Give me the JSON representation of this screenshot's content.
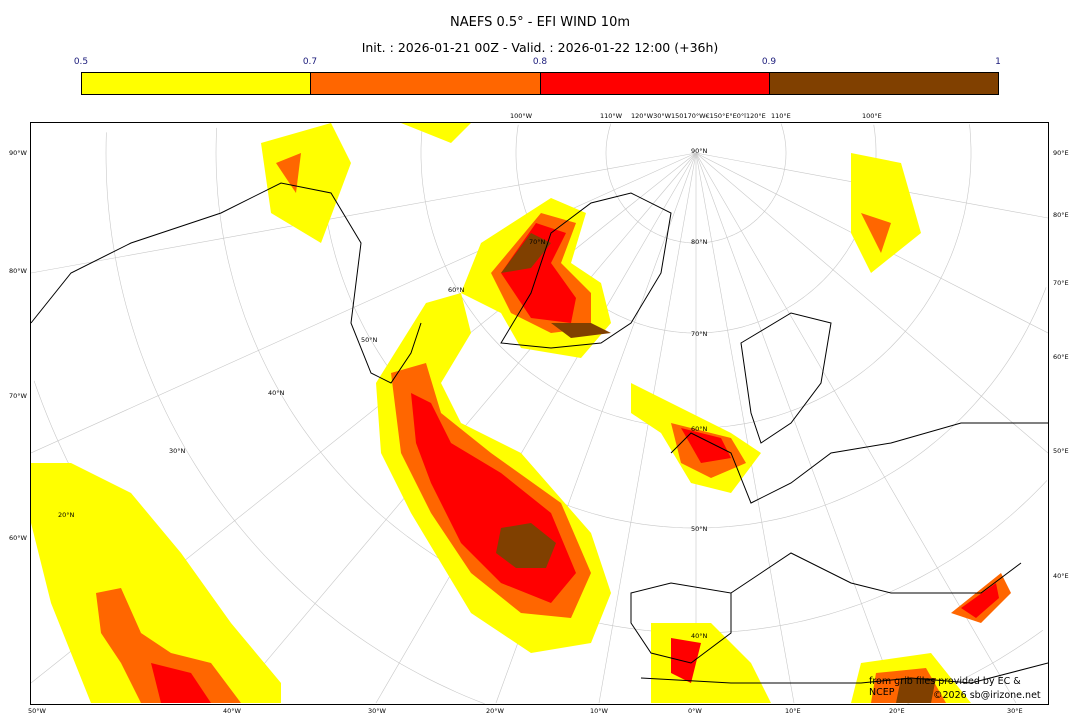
{
  "title": "NAEFS 0.5° - EFI WIND 10m",
  "subtitle": "Init. : 2026-01-21 00Z - Valid. : 2026-01-22 12:00 (+36h)",
  "colorbar": {
    "ticks": [
      "0.5",
      "0.7",
      "0.8",
      "0.9",
      "1"
    ],
    "colors": [
      "#ffff00",
      "#ff6600",
      "#ff0000",
      "#804000"
    ]
  },
  "axes": {
    "left": [
      "90°W",
      "80°W",
      "70°W",
      "60°W"
    ],
    "right": [
      "90°E",
      "80°E",
      "70°E",
      "60°E",
      "50°E",
      "40°E"
    ],
    "bottom": [
      "50°W",
      "40°W",
      "30°W",
      "20°W",
      "10°W",
      "0°W",
      "10°E",
      "20°E",
      "30°E"
    ],
    "top": [
      "100°W",
      "110°W",
      "120°W30°W150170°W€150°E°E0°l120°E",
      "110°E",
      "100°E"
    ],
    "lat_labels": [
      "90°N",
      "80°N",
      "70°N",
      "60°N",
      "50°N",
      "40°N",
      "20°N",
      "30°N",
      "40°N",
      "50°N",
      "60°N",
      "70°N"
    ]
  },
  "credit": {
    "line1": "from grib files provided by EC & NCEP",
    "line2": "©2026 sb@irizone.net"
  }
}
